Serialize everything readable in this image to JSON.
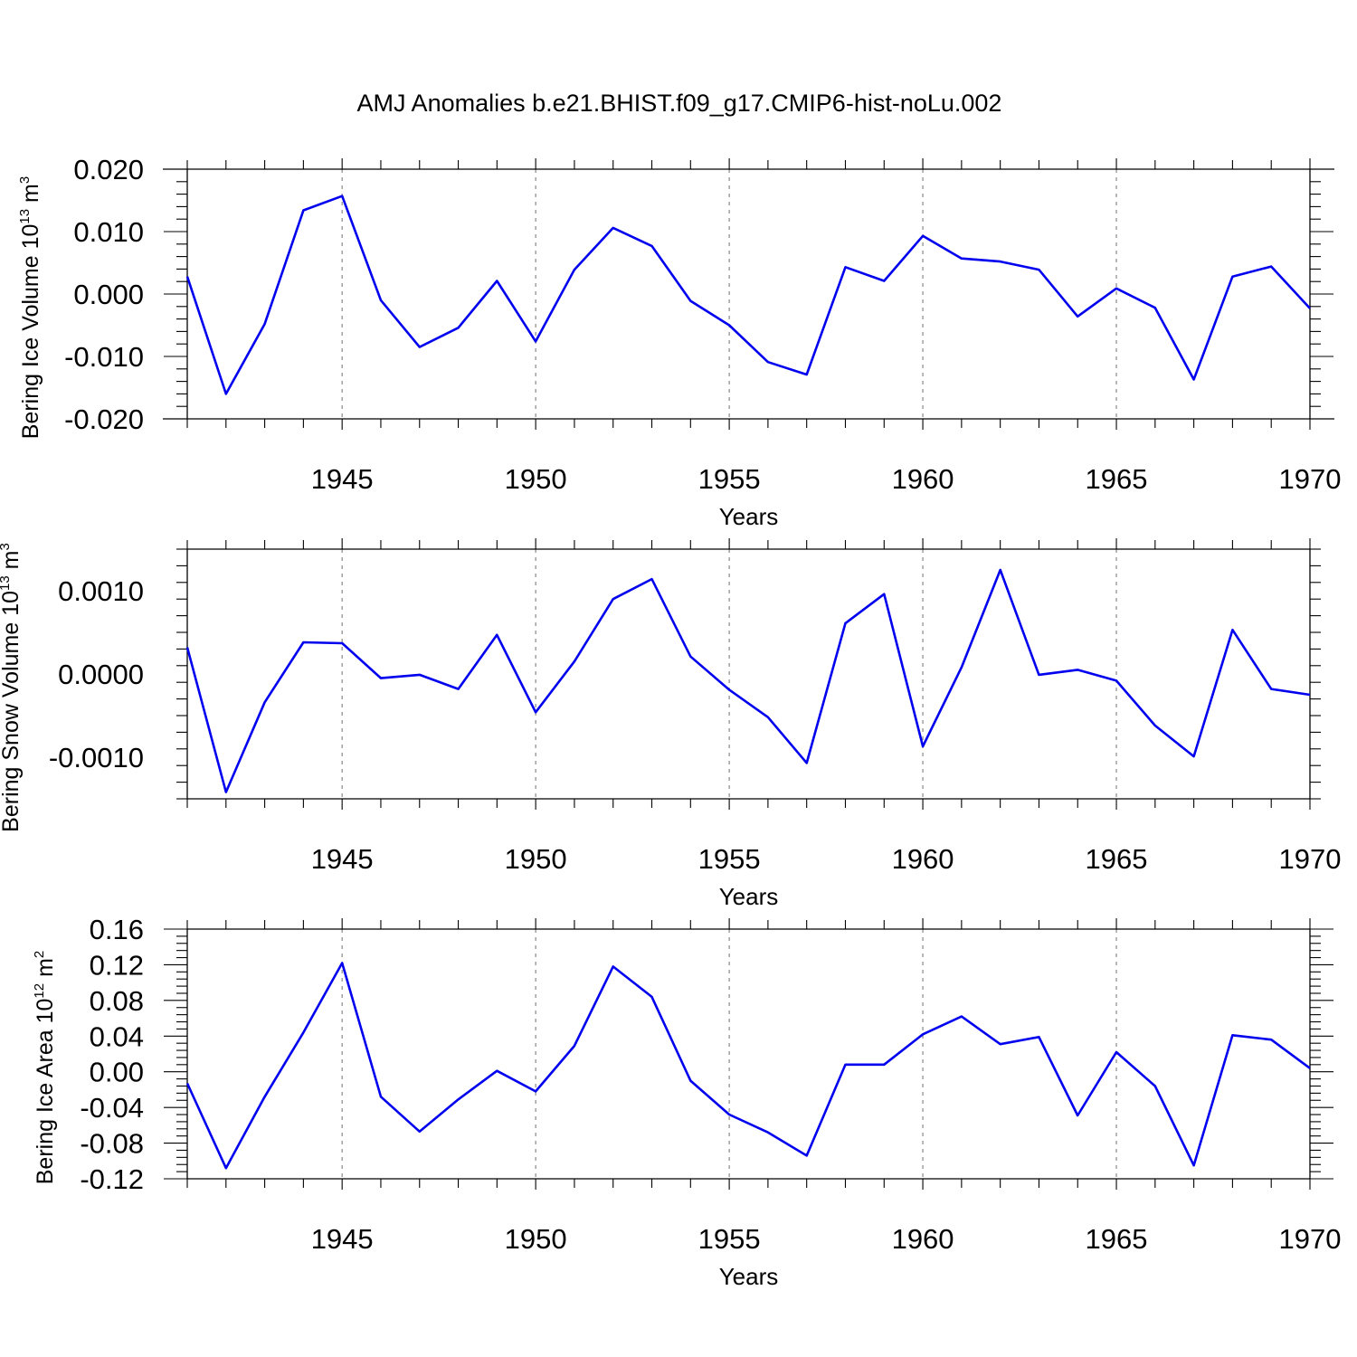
{
  "title": "AMJ Anomalies b.e21.BHIST.f09_g17.CMIP6-hist-noLu.002",
  "chart_data": [
    {
      "type": "line",
      "ylabel_main": "Bering Ice Volume 10",
      "ylabel_sup": "13",
      "ylabel_unit": " m",
      "ylabel_unit_sup": "3",
      "xlabel": "Years",
      "xlim": [
        1941,
        1970
      ],
      "ylim": [
        -0.02,
        0.02
      ],
      "xticks": [
        1945,
        1950,
        1955,
        1960,
        1965,
        1970
      ],
      "yticks": [
        {
          "v": -0.02,
          "label": "-0.020"
        },
        {
          "v": -0.01,
          "label": "-0.010"
        },
        {
          "v": 0.0,
          "label": "0.000"
        },
        {
          "v": 0.01,
          "label": "0.010"
        },
        {
          "v": 0.02,
          "label": "0.020"
        }
      ],
      "grid": "vertical-dashed",
      "color": "#0000ee",
      "x": [
        1941,
        1942,
        1943,
        1944,
        1945,
        1946,
        1947,
        1948,
        1949,
        1950,
        1951,
        1952,
        1953,
        1954,
        1955,
        1956,
        1957,
        1958,
        1959,
        1960,
        1961,
        1962,
        1963,
        1964,
        1965,
        1966,
        1967,
        1968,
        1969,
        1970
      ],
      "values": [
        0.0028,
        -0.016,
        -0.0048,
        0.0134,
        0.0157,
        -0.001,
        -0.0085,
        -0.0054,
        0.0021,
        -0.0076,
        0.0039,
        0.0106,
        0.0077,
        -0.0011,
        -0.005,
        -0.0109,
        -0.0129,
        0.0043,
        0.0021,
        0.0093,
        0.0057,
        0.0052,
        0.0039,
        -0.0036,
        0.0009,
        -0.0022,
        -0.0137,
        0.0028,
        0.0044,
        -0.0023
      ]
    },
    {
      "type": "line",
      "ylabel_main": "Bering Snow Volume 10",
      "ylabel_sup": "13",
      "ylabel_unit": " m",
      "ylabel_unit_sup": "3",
      "xlabel": "Years",
      "xlim": [
        1941,
        1970
      ],
      "ylim": [
        -0.0015,
        0.0015
      ],
      "xticks": [
        1945,
        1950,
        1955,
        1960,
        1965,
        1970
      ],
      "yticks": [
        {
          "v": -0.001,
          "label": "-0.0010"
        },
        {
          "v": 0.0,
          "label": "0.0000"
        },
        {
          "v": 0.001,
          "label": "0.0010"
        }
      ],
      "grid": "vertical-dashed",
      "color": "#0000ee",
      "x": [
        1941,
        1942,
        1943,
        1944,
        1945,
        1946,
        1947,
        1948,
        1949,
        1950,
        1951,
        1952,
        1953,
        1954,
        1955,
        1956,
        1957,
        1958,
        1959,
        1960,
        1961,
        1962,
        1963,
        1964,
        1965,
        1966,
        1967,
        1968,
        1969,
        1970
      ],
      "values": [
        0.00032,
        -0.00142,
        -0.00034,
        0.00038,
        0.00037,
        -5e-05,
        -1e-05,
        -0.00018,
        0.00047,
        -0.00046,
        0.00015,
        0.0009,
        0.00114,
        0.00021,
        -0.00019,
        -0.00052,
        -0.00107,
        0.00061,
        0.00096,
        -0.00087,
        8e-05,
        0.00125,
        -1e-05,
        5e-05,
        -8e-05,
        -0.00062,
        -0.00099,
        0.00053,
        -0.00018,
        -0.00025
      ]
    },
    {
      "type": "line",
      "ylabel_main": "Bering Ice Area 10",
      "ylabel_sup": "12",
      "ylabel_unit": " m",
      "ylabel_unit_sup": "2",
      "xlabel": "Years",
      "xlim": [
        1941,
        1970
      ],
      "ylim": [
        -0.12,
        0.16
      ],
      "xticks": [
        1945,
        1950,
        1955,
        1960,
        1965,
        1970
      ],
      "yticks": [
        {
          "v": -0.12,
          "label": "-0.12"
        },
        {
          "v": -0.08,
          "label": "-0.08"
        },
        {
          "v": -0.04,
          "label": "-0.04"
        },
        {
          "v": 0.0,
          "label": "0.00"
        },
        {
          "v": 0.04,
          "label": "0.04"
        },
        {
          "v": 0.08,
          "label": "0.08"
        },
        {
          "v": 0.12,
          "label": "0.12"
        },
        {
          "v": 0.16,
          "label": "0.16"
        }
      ],
      "grid": "vertical-dashed",
      "color": "#0000ee",
      "x": [
        1941,
        1942,
        1943,
        1944,
        1945,
        1946,
        1947,
        1948,
        1949,
        1950,
        1951,
        1952,
        1953,
        1954,
        1955,
        1956,
        1957,
        1958,
        1959,
        1960,
        1961,
        1962,
        1963,
        1964,
        1965,
        1966,
        1967,
        1968,
        1969,
        1970
      ],
      "values": [
        -0.013,
        -0.108,
        -0.028,
        0.044,
        0.122,
        -0.028,
        -0.067,
        -0.031,
        0.001,
        -0.022,
        0.029,
        0.118,
        0.084,
        -0.01,
        -0.048,
        -0.068,
        -0.094,
        0.008,
        0.008,
        0.042,
        0.062,
        0.031,
        0.039,
        -0.049,
        0.022,
        -0.016,
        -0.105,
        0.041,
        0.036,
        0.004
      ]
    }
  ]
}
